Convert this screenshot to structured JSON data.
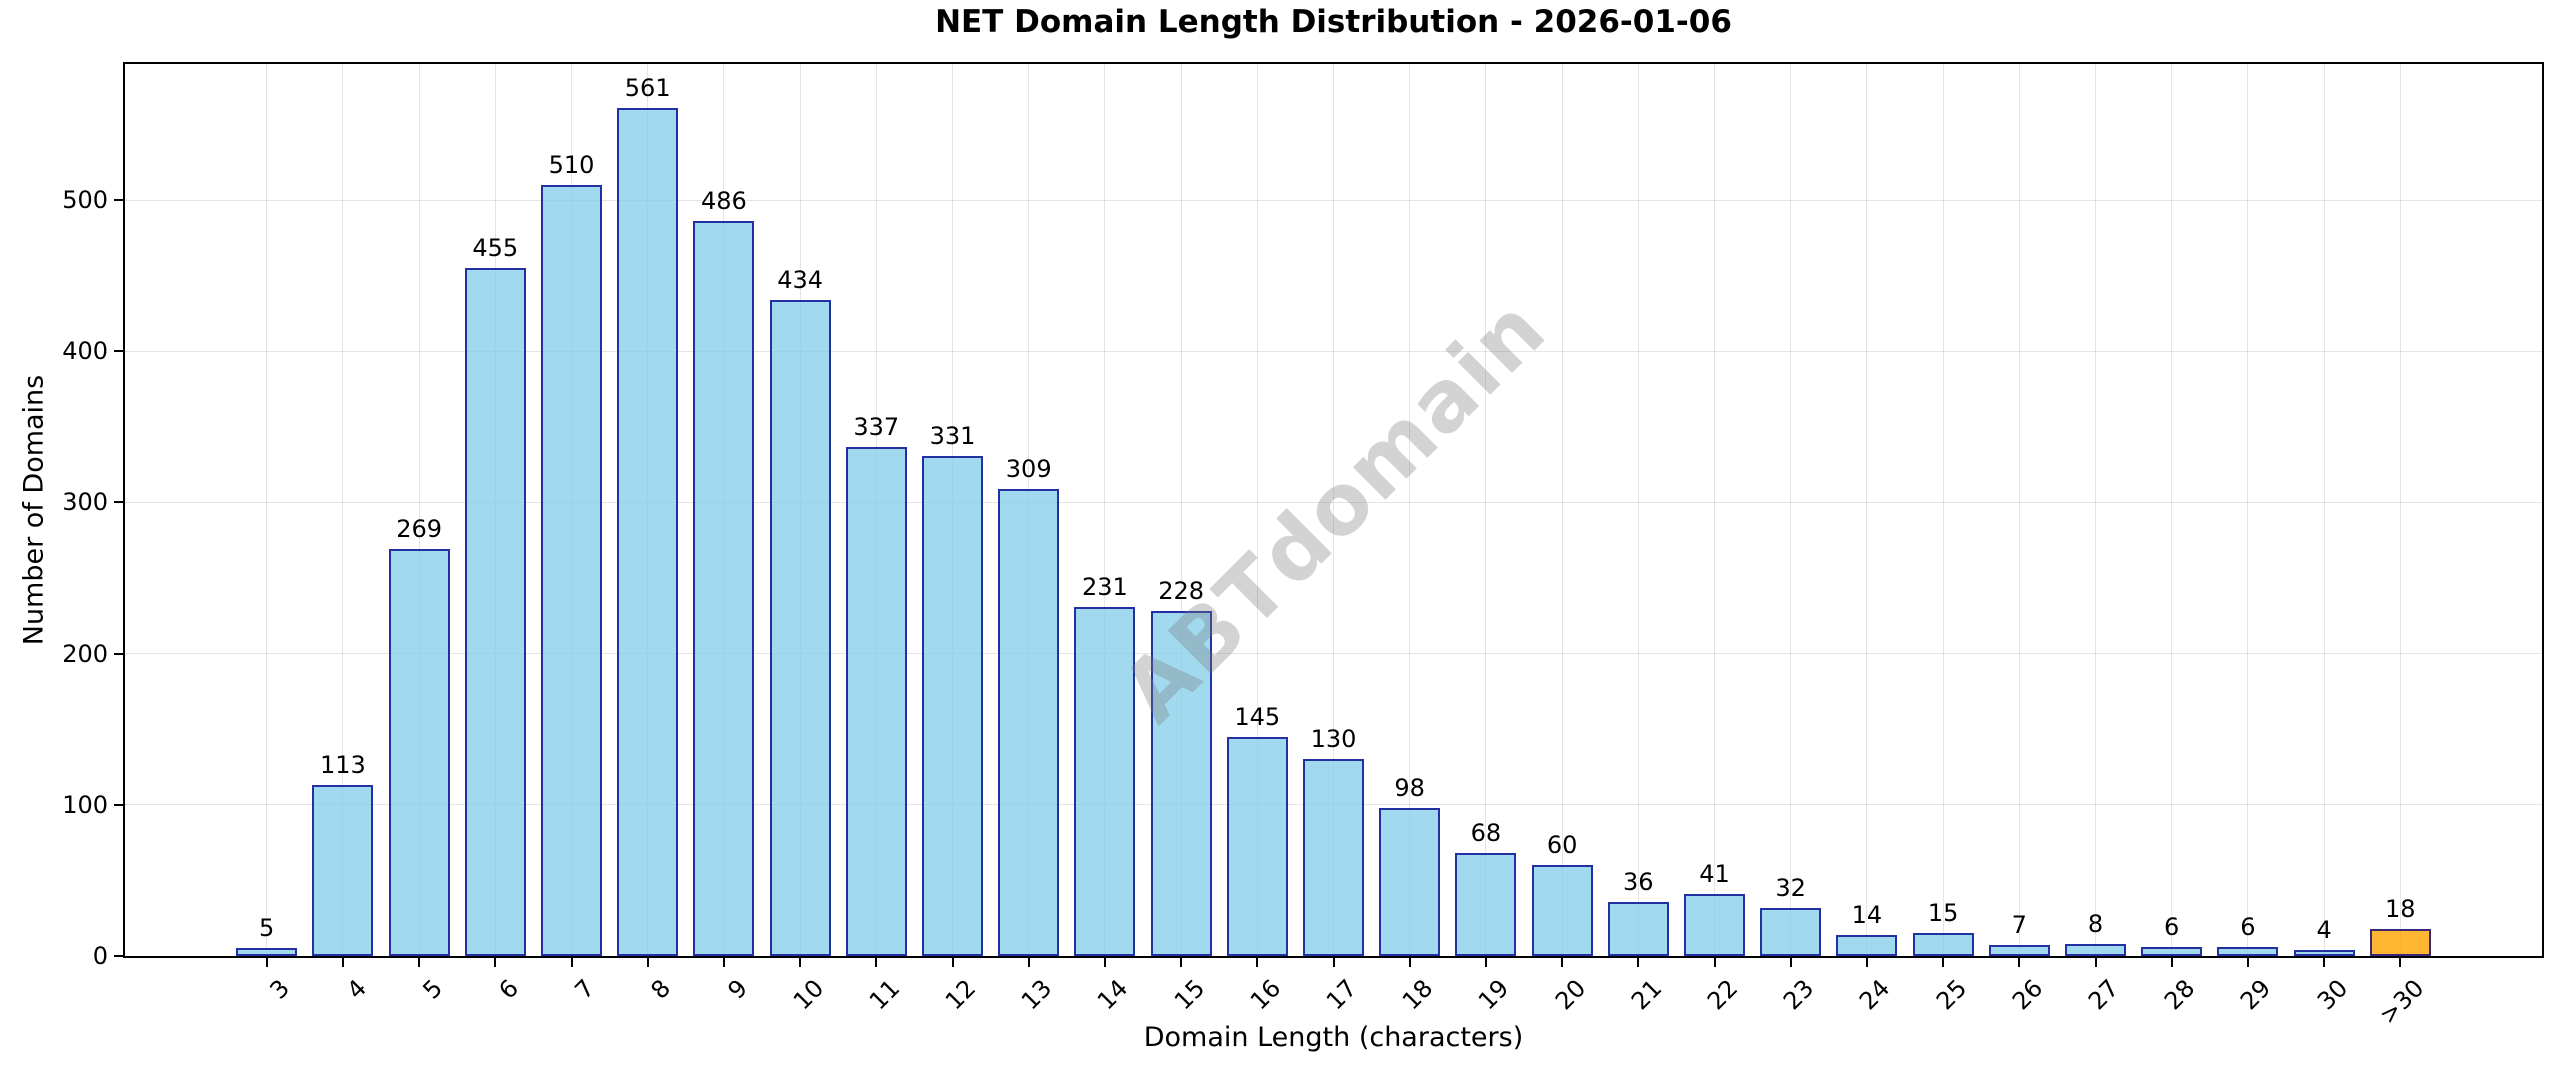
{
  "chart_data": {
    "type": "bar",
    "title": "NET Domain Length Distribution - 2026-01-06",
    "xlabel": "Domain Length (characters)",
    "ylabel": "Number of Domains",
    "categories": [
      "3",
      "4",
      "5",
      "6",
      "7",
      "8",
      "9",
      "10",
      "11",
      "12",
      "13",
      "14",
      "15",
      "16",
      "17",
      "18",
      "19",
      "20",
      "21",
      "22",
      "23",
      "24",
      "25",
      "26",
      "27",
      "28",
      "29",
      "30",
      ">30"
    ],
    "values": [
      5,
      113,
      269,
      455,
      510,
      561,
      486,
      434,
      337,
      331,
      309,
      231,
      228,
      145,
      130,
      98,
      68,
      60,
      36,
      41,
      32,
      14,
      15,
      7,
      8,
      6,
      6,
      4,
      18
    ],
    "yticks": [
      0,
      100,
      200,
      300,
      400,
      500
    ],
    "ylim": [
      0,
      590
    ],
    "grid": true,
    "value_labels": true,
    "legend": null,
    "watermark": "ABTdomain",
    "colors": {
      "bar_fill": "#87CEEB",
      "bar_edge": "#00008B",
      "last_bar_fill": "#FFA500",
      "watermark_gray": "#787878",
      "grid_gray": "#E3E3E3",
      "text": "#000000"
    }
  }
}
